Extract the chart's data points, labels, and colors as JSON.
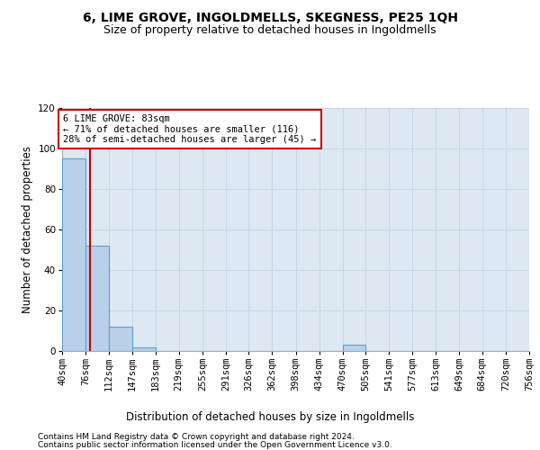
{
  "title1": "6, LIME GROVE, INGOLDMELLS, SKEGNESS, PE25 1QH",
  "title2": "Size of property relative to detached houses in Ingoldmells",
  "xlabel": "Distribution of detached houses by size in Ingoldmells",
  "ylabel": "Number of detached properties",
  "bin_labels": [
    "40sqm",
    "76sqm",
    "112sqm",
    "147sqm",
    "183sqm",
    "219sqm",
    "255sqm",
    "291sqm",
    "326sqm",
    "362sqm",
    "398sqm",
    "434sqm",
    "470sqm",
    "505sqm",
    "541sqm",
    "577sqm",
    "613sqm",
    "649sqm",
    "684sqm",
    "720sqm",
    "756sqm"
  ],
  "bin_edges": [
    40,
    76,
    112,
    147,
    183,
    219,
    255,
    291,
    326,
    362,
    398,
    434,
    470,
    505,
    541,
    577,
    613,
    649,
    684,
    720,
    756
  ],
  "bar_values": [
    95,
    52,
    12,
    2,
    0,
    0,
    0,
    0,
    0,
    0,
    0,
    0,
    3,
    0,
    0,
    0,
    0,
    0,
    0,
    0
  ],
  "bar_color": "#b8d0ea",
  "bar_edge_color": "#5a9fd4",
  "property_size": 83,
  "vline_color": "#cc0000",
  "annotation_line1": "6 LIME GROVE: 83sqm",
  "annotation_line2": "← 71% of detached houses are smaller (116)",
  "annotation_line3": "28% of semi-detached houses are larger (45) →",
  "annotation_box_color": "#ffffff",
  "annotation_box_edge": "#cc0000",
  "grid_color": "#c8d8e8",
  "bg_color": "#dde8f2",
  "ylim": [
    0,
    120
  ],
  "yticks": [
    0,
    20,
    40,
    60,
    80,
    100,
    120
  ],
  "footer1": "Contains HM Land Registry data © Crown copyright and database right 2024.",
  "footer2": "Contains public sector information licensed under the Open Government Licence v3.0.",
  "title1_fontsize": 10,
  "title2_fontsize": 9,
  "xlabel_fontsize": 8.5,
  "ylabel_fontsize": 8.5,
  "tick_fontsize": 7.5,
  "footer_fontsize": 6.5
}
